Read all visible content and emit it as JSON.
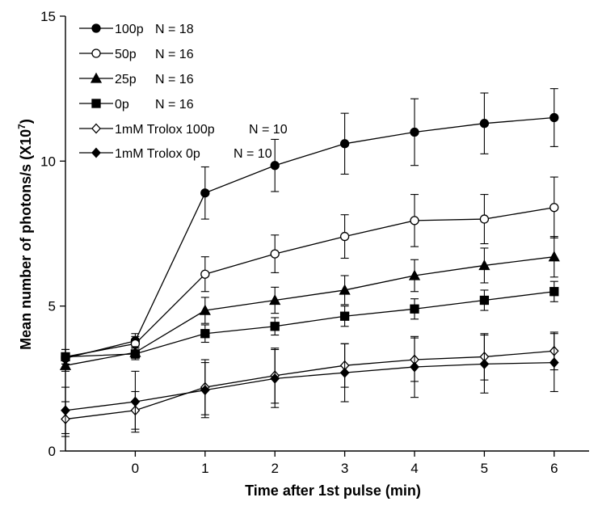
{
  "chart_data": {
    "type": "line",
    "title": "",
    "xlabel": "Time after 1st pulse (min)",
    "ylabel": "Mean number of photons/s (X10",
    "ylabel_superscript": "7",
    "ylabel_suffix": ")",
    "xlim": [
      -1,
      6.5
    ],
    "ylim": [
      0,
      15
    ],
    "x_ticks": [
      0,
      1,
      2,
      3,
      4,
      5,
      6
    ],
    "y_ticks": [
      0,
      5,
      10,
      15
    ],
    "grid": false,
    "legend_position": "top-left",
    "x": [
      -1,
      0,
      1,
      2,
      3,
      4,
      5,
      6
    ],
    "series": [
      {
        "name": "100p",
        "n_label": "N = 18",
        "marker": "circle-filled",
        "values": [
          3.2,
          3.8,
          8.9,
          9.85,
          10.6,
          11.0,
          11.3,
          11.5
        ],
        "errors": [
          0.3,
          0.25,
          0.9,
          0.9,
          1.05,
          1.15,
          1.05,
          1.0
        ]
      },
      {
        "name": "50p",
        "n_label": "N = 16",
        "marker": "circle-open",
        "values": [
          3.25,
          3.7,
          6.1,
          6.8,
          7.4,
          7.95,
          8.0,
          8.4
        ],
        "errors": [
          0.25,
          0.25,
          0.6,
          0.65,
          0.75,
          0.9,
          0.85,
          1.05
        ]
      },
      {
        "name": "25p",
        "n_label": "N = 16",
        "marker": "triangle-filled",
        "values": [
          2.95,
          3.4,
          4.85,
          5.2,
          5.55,
          6.05,
          6.4,
          6.7
        ],
        "errors": [
          0.2,
          0.2,
          0.45,
          0.45,
          0.5,
          0.55,
          0.6,
          0.7
        ]
      },
      {
        "name": "0p",
        "n_label": "N = 16",
        "marker": "square-filled",
        "values": [
          3.25,
          3.35,
          4.05,
          4.3,
          4.65,
          4.9,
          5.2,
          5.5
        ],
        "errors": [
          0.25,
          0.2,
          0.3,
          0.3,
          0.35,
          0.35,
          0.35,
          0.35
        ]
      },
      {
        "name": "1mM Trolox 100p",
        "n_label": "N = 10",
        "marker": "diamond-open",
        "values": [
          1.1,
          1.4,
          2.2,
          2.6,
          2.95,
          3.15,
          3.25,
          3.45
        ],
        "errors": [
          0.6,
          0.65,
          0.95,
          0.95,
          0.75,
          0.75,
          0.8,
          0.65
        ]
      },
      {
        "name": "1mM Trolox 0p",
        "n_label": "N = 10",
        "marker": "diamond-filled",
        "values": [
          1.4,
          1.7,
          2.1,
          2.5,
          2.7,
          2.9,
          3.0,
          3.05
        ],
        "errors": [
          0.8,
          1.05,
          0.95,
          1.0,
          1.0,
          1.05,
          1.0,
          1.0
        ]
      }
    ]
  }
}
